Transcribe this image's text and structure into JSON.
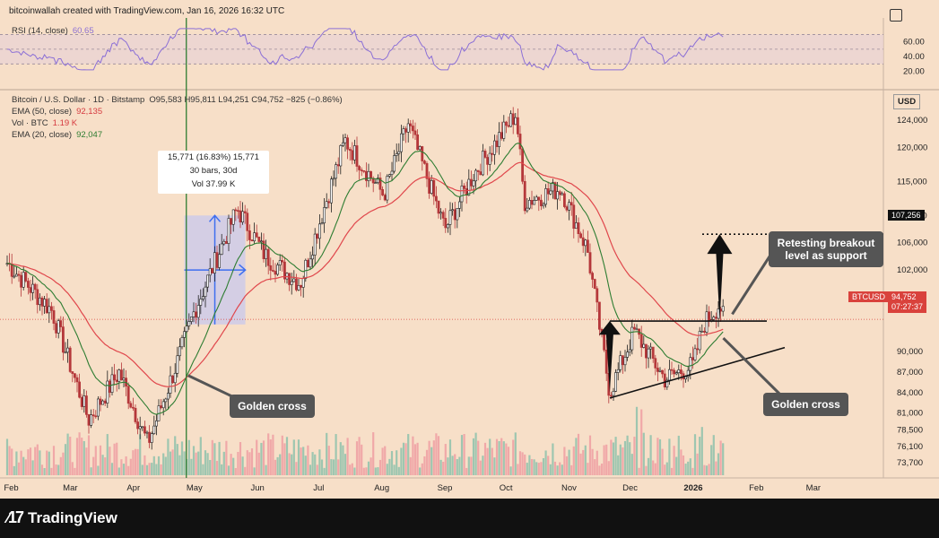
{
  "header": {
    "credit": "bitcoinwallah created with TradingView.com, Jan 16, 2026 16:32 UTC"
  },
  "rsi_panel": {
    "label": "RSI (14, close)",
    "value": "60.65",
    "levels": [
      80,
      60,
      40,
      20
    ],
    "level_labels": [
      "60.00",
      "40.00",
      "20.00"
    ],
    "rsi_color": "#8b6fd6",
    "ma_color": "#e0b84a"
  },
  "legend": {
    "symbol": "Bitcoin / U.S. Dollar · 1D · Bitstamp",
    "ohlc": "O95,583  H95,811  L94,251  C94,752  −825 (−0.86%)",
    "ema50_label": "EMA (50, close)",
    "ema50_value": "92,135",
    "vol_label": "Vol · BTC",
    "vol_value": "1.19 K",
    "ema20_label": "EMA (20, close)",
    "ema20_value": "92,047"
  },
  "currency": "USD",
  "price_axis": [
    "124,000",
    "120,000",
    "115,000",
    "110,000",
    "106,000",
    "102,000",
    "98,000",
    "94,752",
    "90,000",
    "87,000",
    "84,000",
    "81,000",
    "78,500",
    "76,100",
    "73,700"
  ],
  "time_axis": [
    "Feb",
    "Mar",
    "Apr",
    "May",
    "Jun",
    "Jul",
    "Aug",
    "Sep",
    "Oct",
    "Nov",
    "Dec",
    "2026",
    "Feb",
    "Mar"
  ],
  "tags": {
    "target": "107,256",
    "symbol": "BTCUSD",
    "last_price": "94,752",
    "countdown": "07:27:37"
  },
  "measure_box": {
    "line1": "15,771 (16.83%) 15,771",
    "line2": "30 bars, 30d",
    "line3": "Vol 37.99 K"
  },
  "annotations": {
    "golden_cross_left": "Golden cross",
    "golden_cross_right": "Golden cross",
    "retest": "Retesting breakout level as support"
  },
  "colors": {
    "background": "#f7dfc8",
    "up_candle": "#1f1f1f",
    "down_candle": "#b5373a",
    "ema50": "#e0474c",
    "ema20": "#2e7d32",
    "volume_up": "#9ec6b0",
    "volume_down": "#f0a8a8",
    "measure_fill": "#c8c8ee",
    "measure_arrow": "#3d6ef0"
  },
  "chart_data": {
    "type": "candlestick",
    "title": "Bitcoin / U.S. Dollar · 1D · Bitstamp",
    "x_range": [
      "2025-01-29",
      "2026-03-20"
    ],
    "ylim": [
      70000,
      127000
    ],
    "key_points": [
      {
        "date": "2025-01-29",
        "close": 103000
      },
      {
        "date": "2025-02-20",
        "close": 96000
      },
      {
        "date": "2025-03-10",
        "close": 80000
      },
      {
        "date": "2025-03-25",
        "close": 87000
      },
      {
        "date": "2025-04-08",
        "close": 76500
      },
      {
        "date": "2025-04-22",
        "close": 88000
      },
      {
        "date": "2025-05-01",
        "close": 96000
      },
      {
        "date": "2025-05-22",
        "close": 111000
      },
      {
        "date": "2025-06-05",
        "close": 104000
      },
      {
        "date": "2025-06-22",
        "close": 100000
      },
      {
        "date": "2025-07-14",
        "close": 121000
      },
      {
        "date": "2025-08-02",
        "close": 113000
      },
      {
        "date": "2025-08-14",
        "close": 123500
      },
      {
        "date": "2025-09-01",
        "close": 108000
      },
      {
        "date": "2025-09-15",
        "close": 116000
      },
      {
        "date": "2025-10-06",
        "close": 125000
      },
      {
        "date": "2025-10-10",
        "close": 112000
      },
      {
        "date": "2025-10-28",
        "close": 114000
      },
      {
        "date": "2025-11-10",
        "close": 105000
      },
      {
        "date": "2025-11-21",
        "close": 84000
      },
      {
        "date": "2025-12-03",
        "close": 93000
      },
      {
        "date": "2025-12-18",
        "close": 86000
      },
      {
        "date": "2026-01-01",
        "close": 88000
      },
      {
        "date": "2026-01-06",
        "close": 94000
      },
      {
        "date": "2026-01-14",
        "close": 97000
      },
      {
        "date": "2026-01-16",
        "close": 94752
      }
    ],
    "last_ohlc": {
      "open": 95583,
      "high": 95811,
      "low": 94251,
      "close": 94752,
      "change": -825,
      "change_pct": -0.86
    },
    "ema50_last": 92135,
    "ema20_last": 92047,
    "volume_last": 1190,
    "breakout_level": 94500,
    "target_level": 107256,
    "golden_cross_dates": [
      "2025-04-27",
      "2026-01-14"
    ],
    "measure": {
      "start": "2025-04-26",
      "end": "2025-05-26",
      "change": 15771,
      "change_pct": 16.83,
      "bars": 30,
      "volume": 37990
    }
  }
}
